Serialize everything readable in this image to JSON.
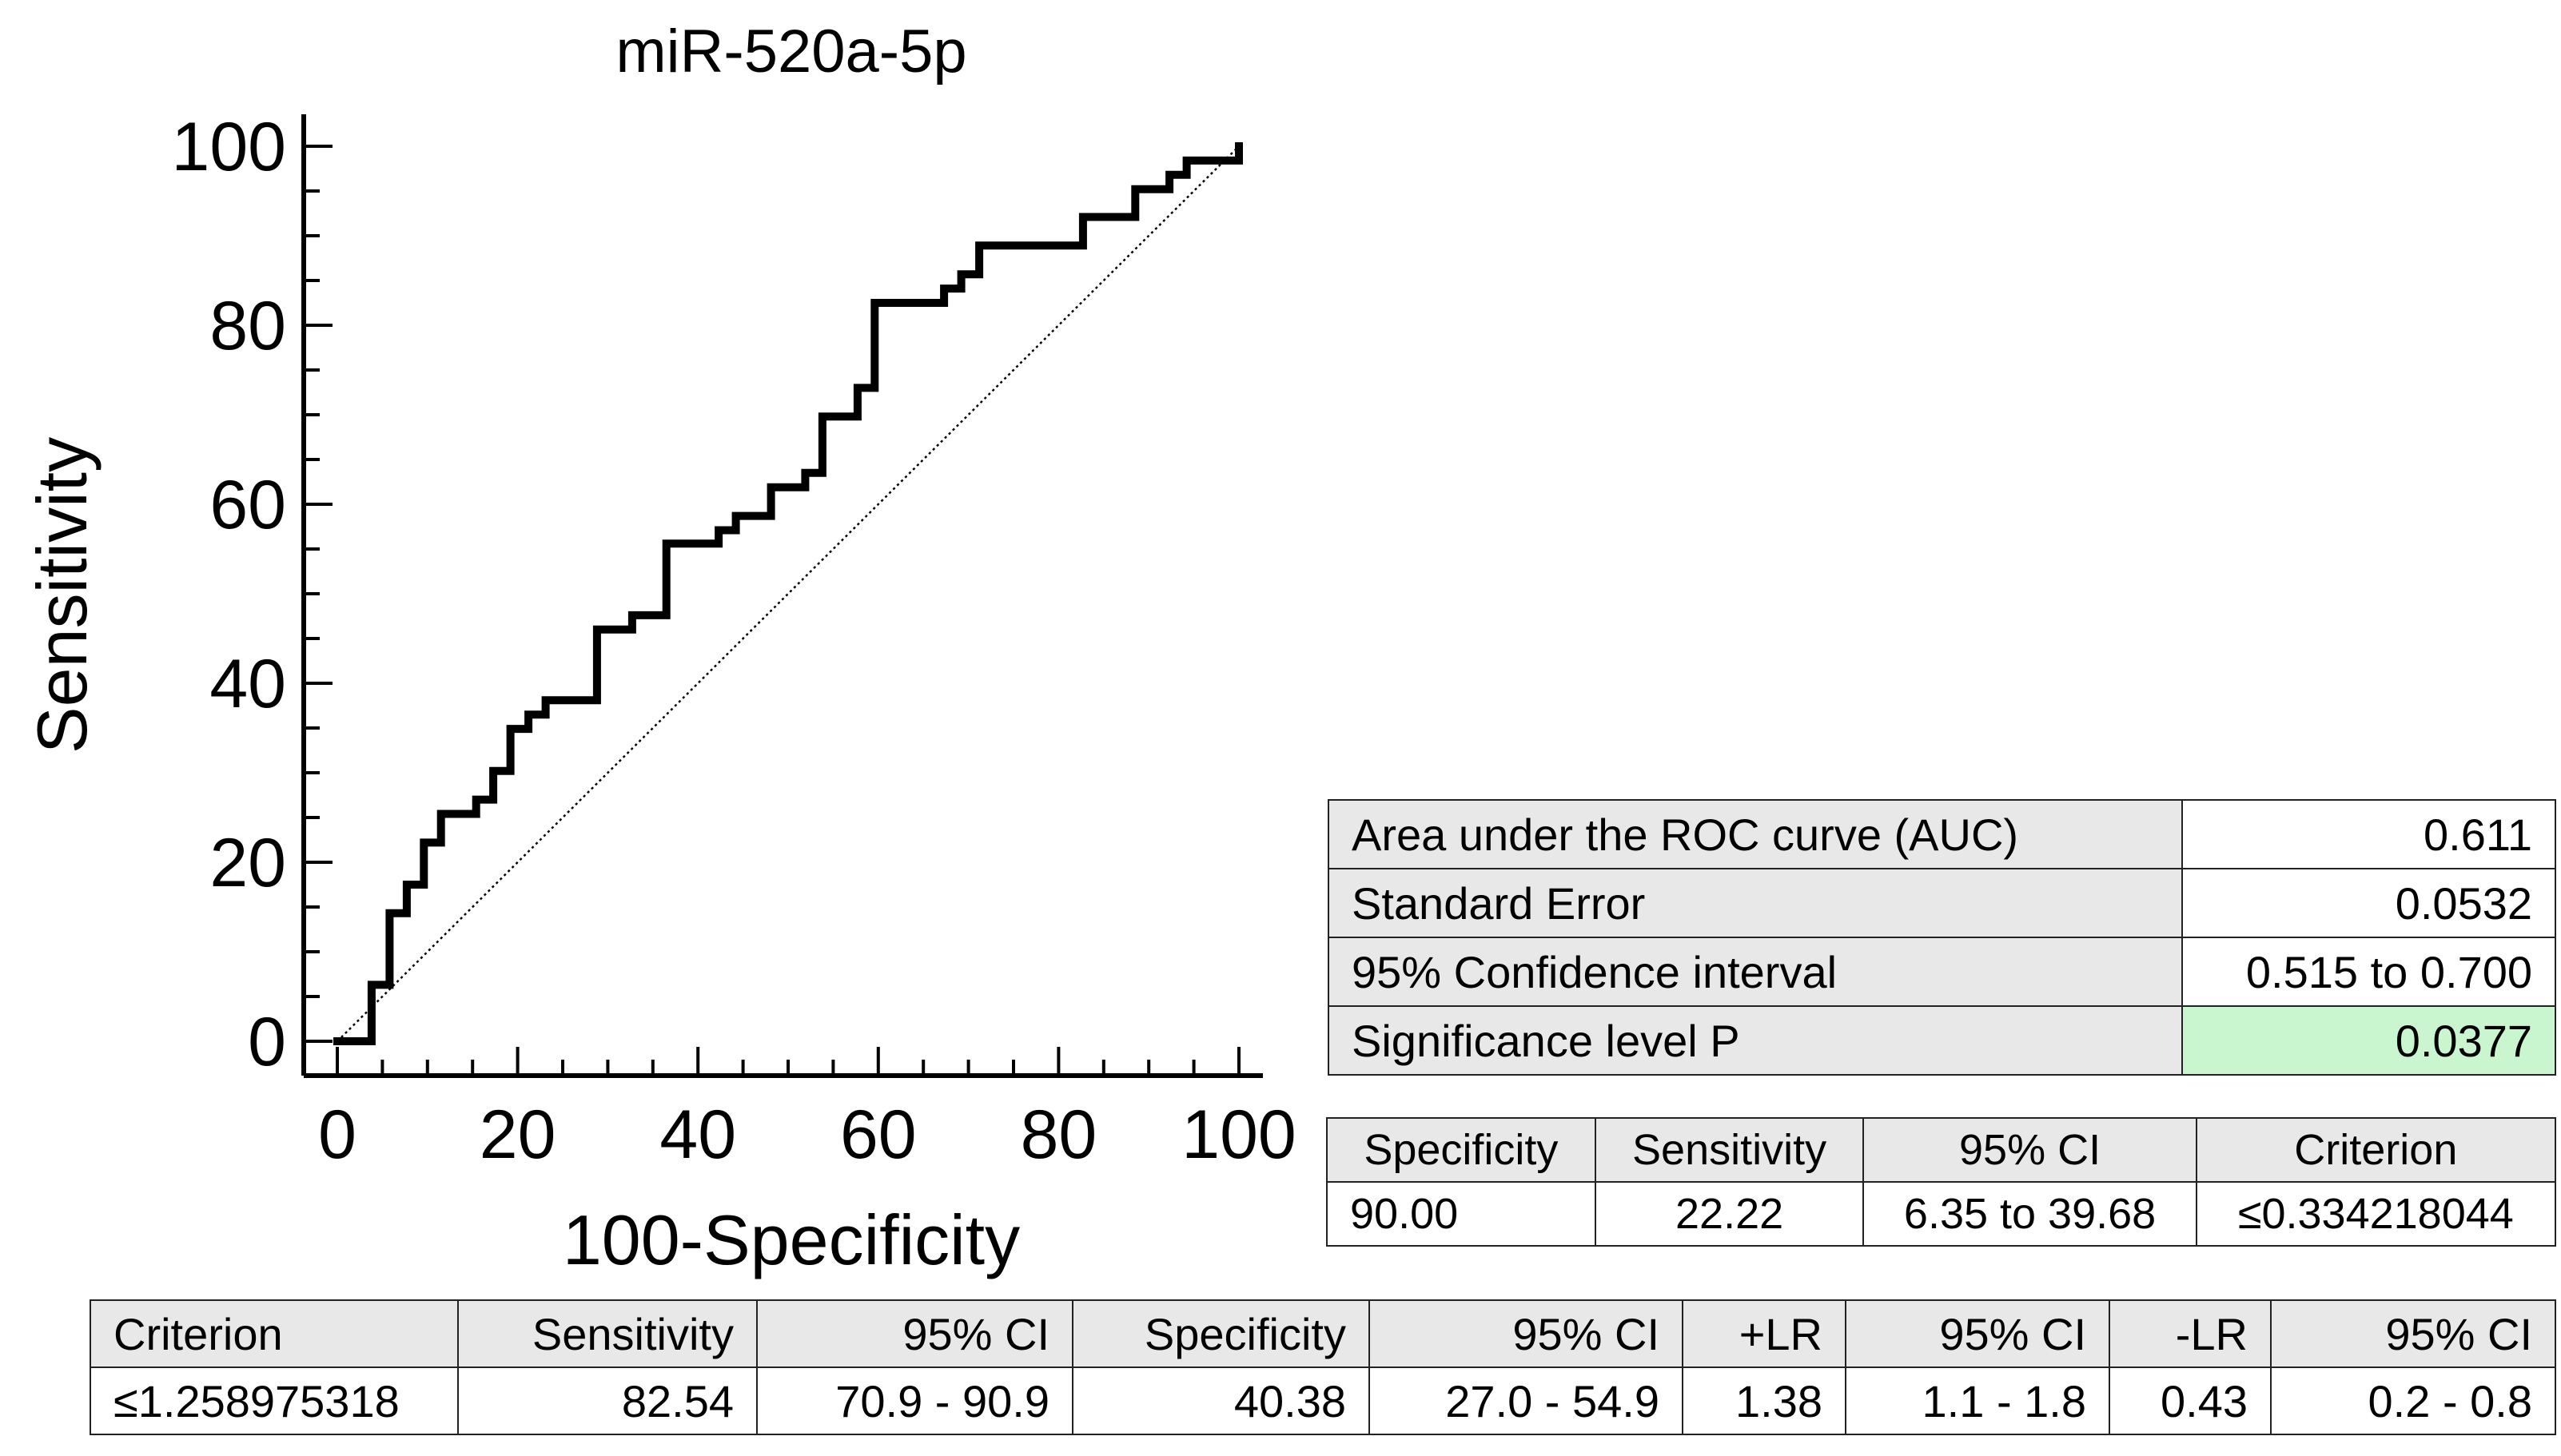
{
  "chart_data": {
    "type": "line",
    "title": "miR-520a-5p",
    "xlabel": "100-Specificity",
    "ylabel": "Sensitivity",
    "xlim": [
      0,
      100
    ],
    "ylim": [
      0,
      100
    ],
    "x_ticks": [
      0,
      20,
      40,
      60,
      80,
      100
    ],
    "y_ticks": [
      0,
      20,
      40,
      60,
      80,
      100
    ],
    "grid": false,
    "legend": "none",
    "reference_line": {
      "from": [
        0,
        0
      ],
      "to": [
        100,
        100
      ],
      "style": "dotted"
    },
    "series": [
      {
        "color": "#000000",
        "x": [
          0,
          3.8,
          3.8,
          5.8,
          5.8,
          7.7,
          7.7,
          9.6,
          9.6,
          11.5,
          11.5,
          15.4,
          15.4,
          17.3,
          17.3,
          19.2,
          19.2,
          21.2,
          21.2,
          23.1,
          23.1,
          28.8,
          28.8,
          32.7,
          32.7,
          36.5,
          36.5,
          42.3,
          42.3,
          44.2,
          44.2,
          48.1,
          48.1,
          51.9,
          51.9,
          53.8,
          53.8,
          57.7,
          57.7,
          59.6,
          59.6,
          67.3,
          67.3,
          69.2,
          69.2,
          71.2,
          71.2,
          82.7,
          82.7,
          88.5,
          88.5,
          92.3,
          92.3,
          94.2,
          94.2,
          100,
          100
        ],
        "y": [
          0,
          0,
          6.3,
          6.3,
          14.3,
          14.3,
          17.5,
          17.5,
          22.2,
          22.2,
          25.4,
          25.4,
          27.0,
          27.0,
          30.2,
          30.2,
          34.9,
          34.9,
          36.5,
          36.5,
          38.1,
          38.1,
          46.0,
          46.0,
          47.6,
          47.6,
          55.6,
          55.6,
          57.1,
          57.1,
          58.7,
          58.7,
          61.9,
          61.9,
          63.5,
          63.5,
          69.8,
          69.8,
          73.0,
          73.0,
          82.5,
          82.5,
          84.1,
          84.1,
          85.7,
          85.7,
          88.9,
          88.9,
          92.1,
          92.1,
          95.2,
          95.2,
          96.8,
          96.8,
          98.4,
          98.4,
          100
        ]
      }
    ]
  },
  "auc_table": {
    "rows": [
      {
        "label": "Area under the ROC curve (AUC)",
        "value": "0.611"
      },
      {
        "label": "Standard Error",
        "value": "0.0532"
      },
      {
        "label": "95% Confidence interval",
        "value": "0.515 to 0.700"
      },
      {
        "label": "Significance level P",
        "value": "0.0377",
        "highlight": "#c9f5cf"
      }
    ]
  },
  "spec_table": {
    "headers": [
      "Specificity",
      "Sensitivity",
      "95% CI",
      "Criterion"
    ],
    "row": [
      "90.00",
      "22.22",
      "6.35 to 39.68",
      "≤0.334218044"
    ]
  },
  "criterion_table": {
    "headers": [
      "Criterion",
      "Sensitivity",
      "95% CI",
      "Specificity",
      "95% CI",
      "+LR",
      "95% CI",
      "-LR",
      "95% CI"
    ],
    "row": [
      "≤1.258975318",
      "82.54",
      "70.9 - 90.9",
      "40.38",
      "27.0 - 54.9",
      "1.38",
      "1.1 - 1.8",
      "0.43",
      "0.2 - 0.8"
    ]
  }
}
